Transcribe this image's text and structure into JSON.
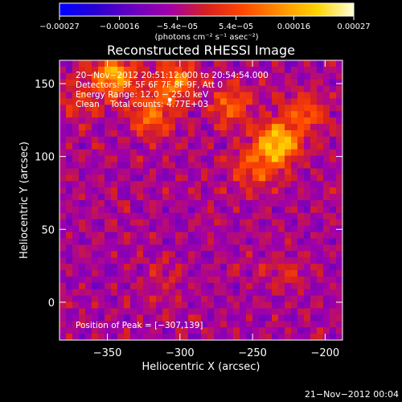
{
  "chart_data": {
    "type": "heatmap",
    "title": "Reconstructed RHESSI Image",
    "xlabel": "Heliocentric X (arcsec)",
    "ylabel": "Heliocentric Y (arcsec)",
    "xlim": [
      -383,
      -188
    ],
    "ylim": [
      -26,
      166
    ],
    "x_ticks": [
      -350,
      -300,
      -250,
      -200
    ],
    "x_tick_labels": [
      "−350",
      "−300",
      "−250",
      "−200"
    ],
    "y_ticks": [
      0,
      50,
      100,
      150
    ],
    "y_tick_labels": [
      "0",
      "50",
      "100",
      "150"
    ],
    "colorbar": {
      "range": [
        -0.00027,
        0.00027
      ],
      "ticks": [
        -0.00027,
        -0.00016,
        -5.4e-05,
        5.4e-05,
        0.00016,
        0.00027
      ],
      "tick_labels": [
        "−0.00027",
        "−0.00016",
        "−5.4e−05",
        "5.4e−05",
        "0.00016",
        "0.00027"
      ],
      "unit_label": "(photons cm⁻² s⁻¹ asec⁻²)",
      "colors": [
        "#0000ff",
        "#2a00d0",
        "#6a00c0",
        "#a200a8",
        "#d82020",
        "#ff4800",
        "#ff9000",
        "#ffd400",
        "#ffffd8"
      ]
    },
    "annotations": [
      "20−Nov−2012 20:51:12.000 to 20:54:54.000",
      "Detectors: 3F 5F 6F 7F 8F 9F, Att 0",
      "Energy Range: 12.0 − 25.0 keV",
      "Clean    Total counts: 4.77E+03"
    ],
    "peak_label": "Position of Peak = [−307,139]",
    "peak": [
      -307,
      139
    ],
    "sources": [
      {
        "x": -345,
        "y": 155,
        "intensity": 0.00022
      },
      {
        "x": -320,
        "y": 128,
        "intensity": 0.00016
      },
      {
        "x": -303,
        "y": 151,
        "intensity": 0.00018
      },
      {
        "x": -265,
        "y": 135,
        "intensity": 0.00014
      },
      {
        "x": -233,
        "y": 108,
        "intensity": 0.00027
      },
      {
        "x": -215,
        "y": 130,
        "intensity": 0.00014
      },
      {
        "x": -250,
        "y": 90,
        "intensity": 0.00012
      },
      {
        "x": -370,
        "y": 140,
        "intensity": 8e-05
      },
      {
        "x": -230,
        "y": 20,
        "intensity": 6e-05
      },
      {
        "x": -310,
        "y": 15,
        "intensity": 5e-05
      }
    ],
    "grid": false
  },
  "footer": {
    "timestamp": "21−Nov−2012 00:04"
  }
}
